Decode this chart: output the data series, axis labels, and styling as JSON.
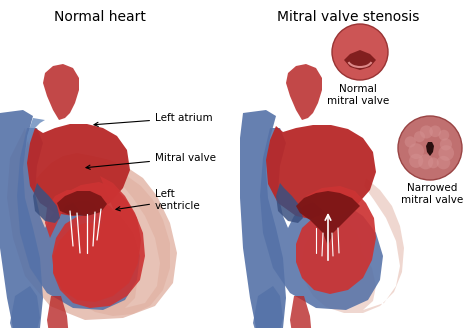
{
  "title_left": "Normal heart",
  "title_right": "Mitral valve stenosis",
  "label_left_atrium": "Left atrium",
  "label_mitral_valve": "Mitral valve",
  "label_left_ventricle": "Left\nventricle",
  "label_normal_mitral": "Normal\nmitral valve",
  "label_narrowed_mitral": "Narrowed\nmitral valve",
  "bg_color": "#ffffff",
  "title_fontsize": 10,
  "label_fontsize": 7.5,
  "heart_red": "#b82828",
  "heart_red2": "#cc3333",
  "heart_blue": "#5572a8",
  "heart_blue2": "#6688bb",
  "heart_blue_dark": "#3a5080",
  "heart_pink": "#e8b8aa",
  "heart_skin": "#dda898",
  "aorta_red": "#aa2222",
  "mv_dark": "#7a1515",
  "right_ventricle_blue": "#4a6898"
}
